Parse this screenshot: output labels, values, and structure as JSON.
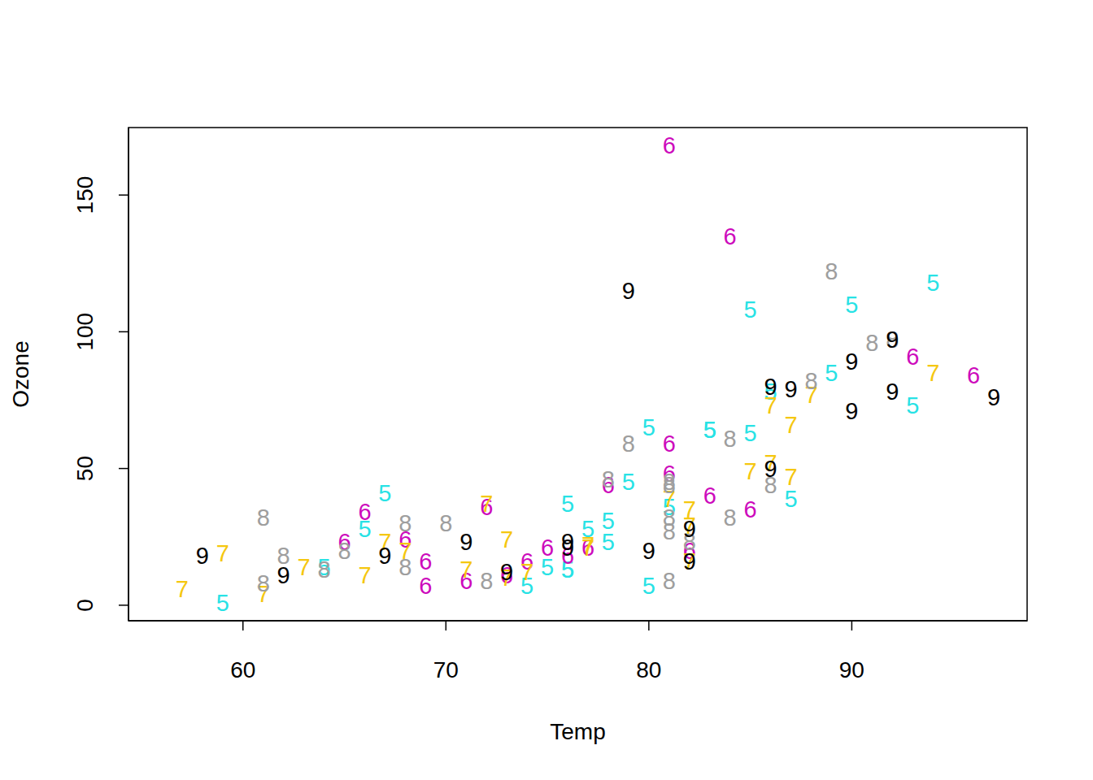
{
  "chart_data": {
    "type": "scatter",
    "x_label": "Temp",
    "y_label": "Ozone",
    "xlim": [
      54.36,
      98.64
    ],
    "ylim": [
      -5.68,
      174.68
    ],
    "xticks": [
      60,
      70,
      80,
      90
    ],
    "yticks": [
      0,
      50,
      100,
      150
    ],
    "marker": "text",
    "grid": false,
    "series": [
      {
        "name": "5",
        "color": "#28E2E5",
        "x": [
          67,
          66,
          74,
          64,
          59,
          76,
          87,
          76,
          83,
          89,
          80,
          85,
          85,
          83,
          86,
          90,
          80,
          78,
          79,
          94,
          93,
          78,
          77,
          76,
          81,
          75
        ],
        "y": [
          41,
          28,
          7,
          14,
          1,
          37,
          39,
          13,
          64,
          85,
          7,
          63,
          108,
          64,
          78,
          110,
          65,
          31,
          45,
          118,
          73,
          23,
          28,
          13,
          36,
          14
        ]
      },
      {
        "name": "6",
        "color": "#CD0BBC",
        "x": [
          72,
          65,
          69,
          66,
          73,
          77,
          84,
          83,
          81,
          74,
          82,
          81,
          85,
          78,
          81,
          96,
          93,
          75,
          71,
          68,
          69,
          76
        ],
        "y": [
          36,
          23,
          16,
          34,
          11,
          21,
          135,
          40,
          48,
          16,
          20,
          59,
          35,
          44,
          168,
          84,
          91,
          21,
          9,
          24,
          7,
          18
        ]
      },
      {
        "name": "7",
        "color": "#F5C710",
        "x": [
          74,
          59,
          66,
          57,
          61,
          67,
          82,
          72,
          85,
          88,
          73,
          82,
          86,
          81,
          87,
          77,
          77,
          86,
          94,
          87,
          73,
          71,
          82,
          63,
          68
        ],
        "y": [
          12,
          19,
          11,
          6,
          4,
          23,
          29,
          37,
          49,
          77,
          10,
          35,
          52,
          39,
          66,
          22,
          21,
          73,
          85,
          47,
          24,
          13,
          16,
          14,
          20
        ]
      },
      {
        "name": "8",
        "color": "#9E9E9E",
        "x": [
          62,
          61,
          68,
          68,
          61,
          81,
          82,
          65,
          81,
          92,
          81,
          84,
          88,
          81,
          89,
          86,
          79,
          72,
          91,
          84,
          81,
          78,
          64,
          70
        ],
        "y": [
          18,
          8,
          14,
          30,
          32,
          45,
          23,
          20,
          32,
          97,
          27,
          61,
          82,
          9,
          122,
          44,
          59,
          9,
          96,
          32,
          44,
          46,
          13,
          30
        ]
      },
      {
        "name": "9",
        "color": "#000000",
        "x": [
          58,
          62,
          79,
          90,
          73,
          92,
          87,
          86,
          86,
          82,
          82,
          76,
          97,
          90,
          92,
          80,
          76,
          67,
          71
        ],
        "y": [
          18,
          11,
          115,
          71,
          12,
          97,
          79,
          80,
          50,
          16,
          28,
          23,
          76,
          89,
          78,
          20,
          21,
          18,
          23
        ]
      }
    ]
  }
}
